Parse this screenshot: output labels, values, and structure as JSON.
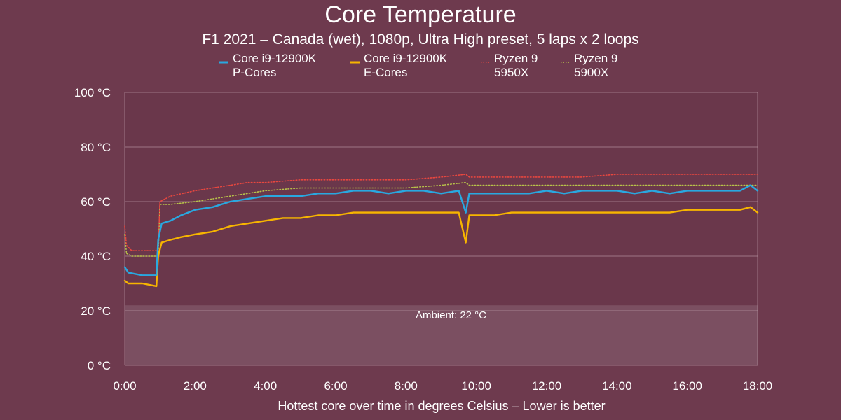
{
  "chart_data": {
    "type": "line",
    "title": "Core Temperature",
    "subtitle": "F1 2021 – Canada (wet), 1080p, Ultra High preset, 5 laps x 2 loops",
    "xlabel": "Hottest core over time in degrees Celsius – Lower is better",
    "ylabel": "",
    "x_unit": "minutes",
    "xlim": [
      0,
      18
    ],
    "ylim": [
      0,
      100
    ],
    "x_ticks": [
      "0:00",
      "2:00",
      "4:00",
      "6:00",
      "8:00",
      "10:00",
      "12:00",
      "14:00",
      "16:00",
      "18:00"
    ],
    "y_ticks": [
      "0 °C",
      "20 °C",
      "40 °C",
      "60 °C",
      "80 °C",
      "100 °C"
    ],
    "grid": true,
    "legend_position": "top-center",
    "annotation": {
      "label": "Ambient: 22 °C",
      "value": 22
    },
    "series": [
      {
        "name": "Core i9-12900K P-Cores",
        "legend_lines": [
          "Core i9-12900K",
          "P-Cores"
        ],
        "color": "#29a8e0",
        "style": "solid",
        "x": [
          0,
          0.1,
          0.5,
          0.9,
          0.95,
          1.05,
          1.3,
          1.6,
          2.0,
          2.5,
          3.0,
          3.5,
          4.0,
          4.5,
          5.0,
          5.5,
          6.0,
          6.5,
          7.0,
          7.5,
          8.0,
          8.5,
          9.0,
          9.5,
          9.7,
          9.8,
          10.0,
          10.5,
          11.0,
          11.5,
          12.0,
          12.5,
          13.0,
          13.5,
          14.0,
          14.5,
          15.0,
          15.5,
          16.0,
          16.5,
          17.0,
          17.5,
          17.8,
          18.0
        ],
        "y": [
          36,
          34,
          33,
          33,
          46,
          52,
          53,
          55,
          57,
          58,
          60,
          61,
          62,
          62,
          62,
          63,
          63,
          64,
          64,
          63,
          64,
          64,
          63,
          64,
          56,
          63,
          63,
          63,
          63,
          63,
          64,
          63,
          64,
          64,
          64,
          63,
          64,
          63,
          64,
          64,
          64,
          64,
          66,
          64
        ]
      },
      {
        "name": "Core i9-12900K E-Cores",
        "legend_lines": [
          "Core i9-12900K",
          "E-Cores"
        ],
        "color": "#f7b500",
        "style": "solid",
        "x": [
          0,
          0.1,
          0.5,
          0.9,
          0.95,
          1.05,
          1.3,
          1.6,
          2.0,
          2.5,
          3.0,
          3.5,
          4.0,
          4.5,
          5.0,
          5.5,
          6.0,
          6.5,
          7.0,
          7.5,
          8.0,
          8.5,
          9.0,
          9.5,
          9.7,
          9.8,
          10.0,
          10.5,
          11.0,
          11.5,
          12.0,
          12.5,
          13.0,
          13.5,
          14.0,
          14.5,
          15.0,
          15.5,
          16.0,
          16.5,
          17.0,
          17.5,
          17.8,
          18.0
        ],
        "y": [
          31,
          30,
          30,
          29,
          40,
          45,
          46,
          47,
          48,
          49,
          51,
          52,
          53,
          54,
          54,
          55,
          55,
          56,
          56,
          56,
          56,
          56,
          56,
          56,
          45,
          55,
          55,
          55,
          56,
          56,
          56,
          56,
          56,
          56,
          56,
          56,
          56,
          56,
          57,
          57,
          57,
          57,
          58,
          56
        ]
      },
      {
        "name": "Ryzen 9 5950X",
        "legend_lines": [
          "Ryzen 9",
          "5950X"
        ],
        "color": "#e8473f",
        "style": "dotted",
        "x": [
          0,
          0.05,
          0.2,
          0.5,
          0.95,
          1.0,
          1.3,
          2.0,
          2.5,
          3.0,
          3.5,
          4.0,
          5.0,
          6.0,
          7.0,
          8.0,
          9.0,
          9.7,
          9.8,
          10.0,
          11.0,
          12.0,
          13.0,
          14.0,
          15.0,
          16.0,
          17.0,
          18.0
        ],
        "y": [
          51,
          44,
          42,
          42,
          42,
          60,
          62,
          64,
          65,
          66,
          67,
          67,
          68,
          68,
          68,
          68,
          69,
          70,
          69,
          69,
          69,
          69,
          69,
          70,
          70,
          70,
          70,
          70
        ]
      },
      {
        "name": "Ryzen 9 5900X",
        "legend_lines": [
          "Ryzen 9",
          "5900X"
        ],
        "color": "#b8c24a",
        "style": "dotted",
        "x": [
          0,
          0.05,
          0.2,
          0.5,
          0.95,
          1.0,
          1.3,
          2.0,
          2.5,
          3.0,
          3.5,
          4.0,
          5.0,
          6.0,
          7.0,
          8.0,
          9.0,
          9.7,
          9.8,
          10.0,
          11.0,
          12.0,
          13.0,
          14.0,
          15.0,
          16.0,
          17.0,
          18.0
        ],
        "y": [
          48,
          41,
          40,
          40,
          40,
          59,
          59,
          60,
          61,
          62,
          63,
          64,
          65,
          65,
          65,
          65,
          66,
          67,
          66,
          66,
          66,
          66,
          66,
          66,
          66,
          66,
          66,
          66
        ]
      }
    ]
  }
}
